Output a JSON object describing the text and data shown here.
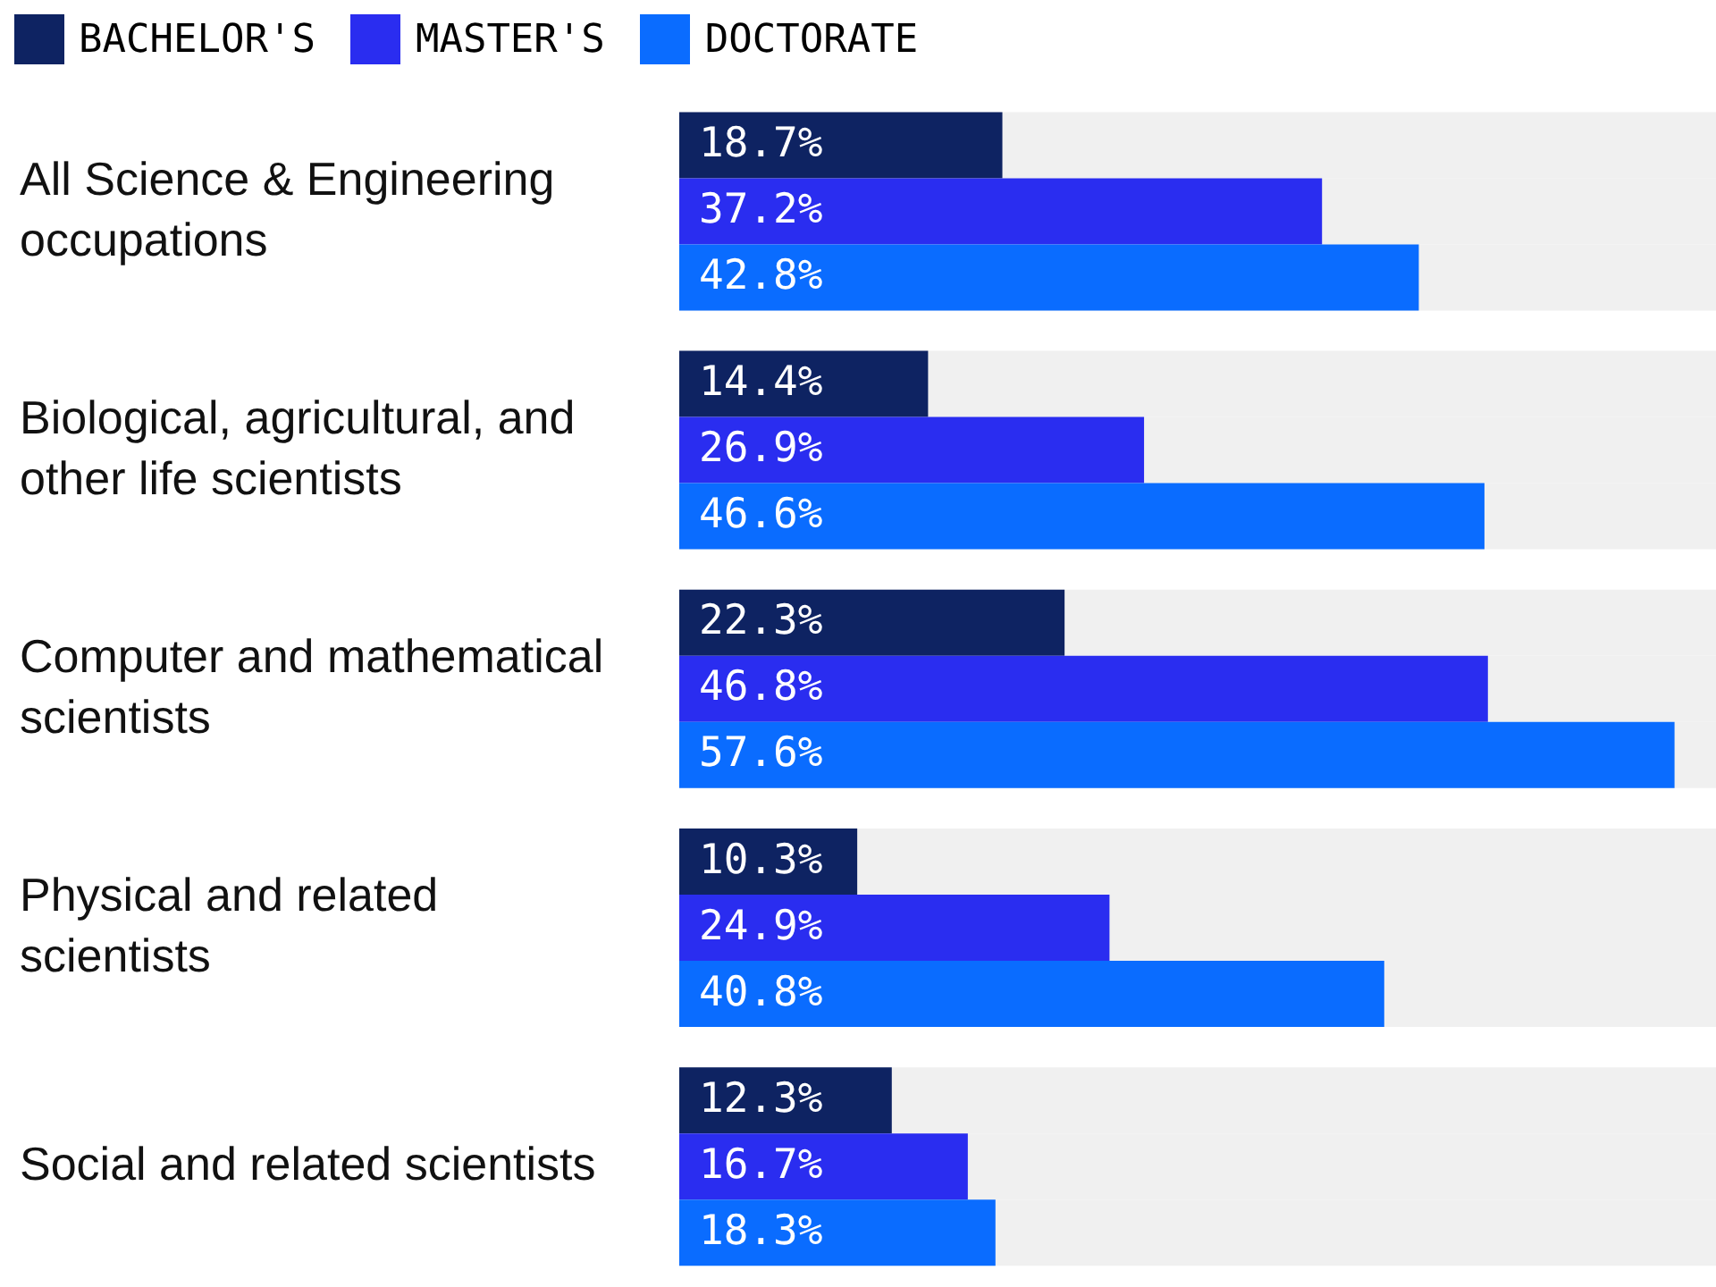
{
  "chart_data": {
    "type": "bar",
    "orientation": "horizontal",
    "categories": [
      "All Science & Engineering occupations",
      "Biological, agricultural, and other life scientists",
      "Computer and mathematical scientists",
      "Physical and related scientists",
      "Social and related scientists"
    ],
    "series": [
      {
        "name": "BACHELOR'S",
        "color": "#0e2362",
        "values": [
          18.7,
          14.4,
          22.3,
          10.3,
          12.3
        ],
        "value_labels": [
          "18.7%",
          "14.4%",
          "22.3%",
          "10.3%",
          "12.3%"
        ]
      },
      {
        "name": "MASTER'S",
        "color": "#2a2df0",
        "values": [
          37.2,
          26.9,
          46.8,
          24.9,
          16.7
        ],
        "value_labels": [
          "37.2%",
          "26.9%",
          "46.8%",
          "24.9%",
          "16.7%"
        ]
      },
      {
        "name": "DOCTORATE",
        "color": "#0a6cff",
        "values": [
          42.8,
          46.6,
          57.6,
          40.8,
          18.3
        ],
        "value_labels": [
          "42.8%",
          "46.6%",
          "57.6%",
          "40.8%",
          "18.3%"
        ]
      }
    ],
    "tick_labels": "y",
    "legend": "top left"
  }
}
